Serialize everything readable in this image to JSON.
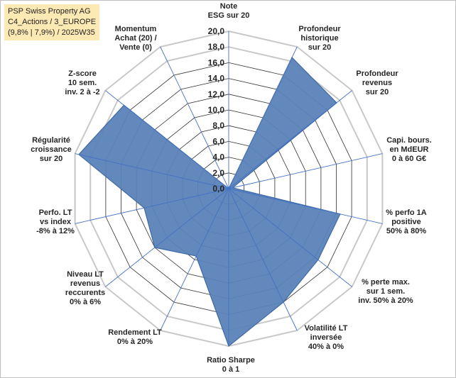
{
  "info_box": {
    "line1": "PSP Swiss Property AG",
    "line2": "C4_Actions / 3_EUROPE",
    "line3": "(9,8% | 7,9%) / 2025W35"
  },
  "colors": {
    "series_fill": "#5b82b8",
    "series_stroke": "#3d6aa6",
    "grid_outer": "#c8c8c8",
    "grid_inner": "#333333",
    "spoke": "#4472c4",
    "info_bg": "#fde9b4"
  },
  "chart_data": {
    "type": "radar",
    "rmin": 0,
    "rmax": 20,
    "tick_step": 2,
    "tick_labels": [
      "0,0",
      "2,0",
      "4,0",
      "6,0",
      "8,0",
      "10,0",
      "12,0",
      "14,0",
      "16,0",
      "18,0",
      "20,0"
    ],
    "axes": [
      {
        "lines": [
          "Note",
          "ESG sur 20"
        ]
      },
      {
        "lines": [
          "Profondeur",
          "historique",
          "sur 20"
        ]
      },
      {
        "lines": [
          "Profondeur",
          "revenus",
          "sur 20"
        ]
      },
      {
        "lines": [
          "Capi. bours.",
          "en MdEUR",
          "0 à 60 G€"
        ]
      },
      {
        "lines": [
          "% perfo 1A",
          "positive",
          "50% à 80%"
        ]
      },
      {
        "lines": [
          "% perte max.",
          "sur 1 sem.",
          "inv. 50% à 20%"
        ]
      },
      {
        "lines": [
          "Volatilité LT",
          "inversée",
          "40% à 0%"
        ]
      },
      {
        "lines": [
          "Ratio Sharpe",
          "0 à 1"
        ]
      },
      {
        "lines": [
          "Rendement LT",
          "0% à 20%"
        ]
      },
      {
        "lines": [
          "Niveau LT",
          "revenus",
          "reccurents",
          "0% à 6%"
        ]
      },
      {
        "lines": [
          "Perfo. LT",
          "vs index",
          "-8% à 12%"
        ]
      },
      {
        "lines": [
          "Régularité",
          "croissance",
          "sur 20"
        ]
      },
      {
        "lines": [
          "Z-score",
          "10 sem.",
          "inv. 2 à -2"
        ]
      },
      {
        "lines": [
          "Momentum",
          "Achat (20) /",
          "Vente (0)"
        ]
      }
    ],
    "values": [
      0,
      18.5,
      17.5,
      0.5,
      14.5,
      14.5,
      16,
      20,
      9.5,
      12,
      11,
      19.5,
      17,
      0
    ]
  }
}
